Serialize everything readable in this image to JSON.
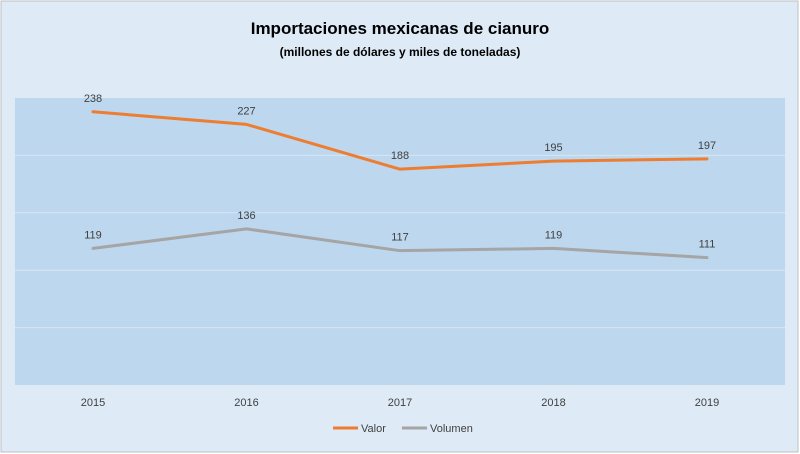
{
  "chart_data": {
    "type": "line",
    "title": "Importaciones mexicanas de cianuro",
    "subtitle": "(millones de dólares y miles de toneladas)",
    "categories": [
      "2015",
      "2016",
      "2017",
      "2018",
      "2019"
    ],
    "series": [
      {
        "name": "Valor",
        "values": [
          238,
          227,
          188,
          195,
          197
        ],
        "color": "#ED7D31"
      },
      {
        "name": "Volumen",
        "values": [
          119,
          136,
          117,
          119,
          111
        ],
        "color": "#A5A5A5"
      }
    ],
    "ylim": [
      0,
      250
    ],
    "grid": true,
    "legend": "bottom",
    "colors": {
      "outer_background": "#DEEBF7",
      "plot_background": "#BDD7EE",
      "gridline": "#D9E6F2"
    }
  }
}
